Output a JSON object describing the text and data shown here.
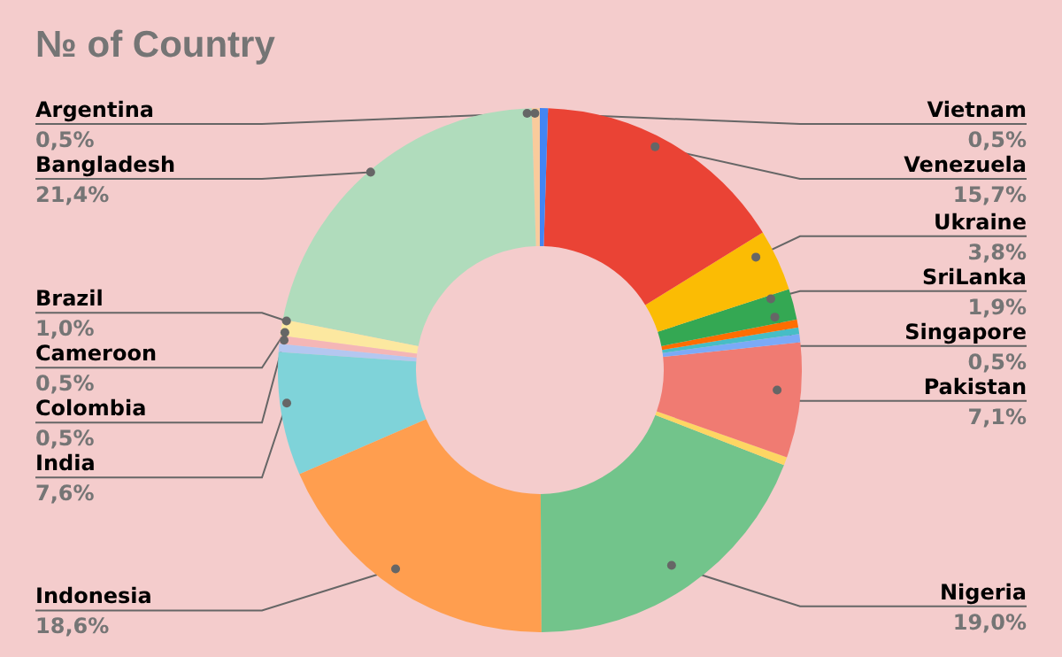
{
  "chart_data": {
    "type": "donut",
    "title": "№ of Country",
    "categories": [
      "Argentina",
      "Bangladesh",
      "Brazil",
      "Cameroon",
      "Colombia",
      "India",
      "Indonesia",
      "Nigeria",
      null,
      "Pakistan",
      null,
      null,
      "Singapore",
      "SriLanka",
      "Ukraine",
      "Venezuela",
      "Vietnam"
    ],
    "values": [
      0.5,
      21.4,
      1.0,
      0.5,
      0.5,
      7.6,
      18.6,
      19.0,
      0.5,
      7.1,
      0.5,
      0.4,
      0.5,
      1.9,
      3.8,
      15.7,
      0.5
    ],
    "value_labels": [
      "0,5%",
      "21,4%",
      "1,0%",
      "0,5%",
      "0,5%",
      "7,6%",
      "18,6%",
      "19,0%",
      null,
      "7,1%",
      null,
      null,
      "0,5%",
      "1,9%",
      "3,8%",
      "15,7%",
      "0,5%"
    ],
    "colors": [
      "#f9cb9c",
      "#b0dcbc",
      "#fce8a0",
      "#f4b6b6",
      "#b4c7f0",
      "#7fd3d9",
      "#ff9e4f",
      "#72c48b",
      "#fdd663",
      "#f07b72",
      "#7baaf7",
      "#46bdc6",
      "#ff6d01",
      "#34a853",
      "#fbbc04",
      "#ea4335",
      "#4285f4"
    ],
    "legend": false
  }
}
